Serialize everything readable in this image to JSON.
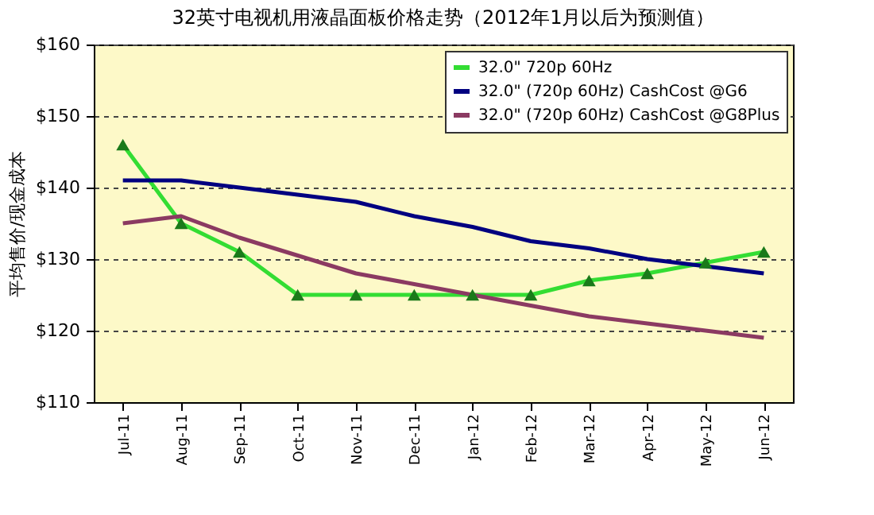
{
  "chart_data": {
    "type": "line",
    "title": "32英寸电视机用液晶面板价格走势（2012年1月以后为预测值）",
    "ylabel": "平均售价/现金成本",
    "categories": [
      "Jul-11",
      "Aug-11",
      "Sep-11",
      "Oct-11",
      "Nov-11",
      "Dec-11",
      "Jan-12",
      "Feb-12",
      "Mar-12",
      "Apr-12",
      "May-12",
      "Jun-12"
    ],
    "series": [
      {
        "name": "32.0\" 720p 60Hz",
        "color": "#33dd33",
        "marker": "triangle",
        "values": [
          146,
          135,
          131,
          125,
          125,
          125,
          125,
          125,
          127,
          128,
          129.5,
          131
        ]
      },
      {
        "name": "32.0\" (720p 60Hz) CashCost @G6",
        "color": "#000080",
        "marker": "none",
        "values": [
          141,
          141,
          140,
          139,
          138,
          136,
          134.5,
          132.5,
          131.5,
          130,
          129,
          128
        ]
      },
      {
        "name": "32.0\" (720p 60Hz) CashCost @G8Plus",
        "color": "#8b3a62",
        "marker": "none",
        "values": [
          135,
          136,
          133,
          130.5,
          128,
          126.5,
          125,
          123.5,
          122,
          121,
          120,
          119
        ]
      }
    ],
    "ylim": [
      110,
      160
    ],
    "yticks": [
      {
        "value": 110,
        "label": "$110"
      },
      {
        "value": 120,
        "label": "$120"
      },
      {
        "value": 130,
        "label": "$130"
      },
      {
        "value": 140,
        "label": "$140"
      },
      {
        "value": 150,
        "label": "$150"
      },
      {
        "value": 160,
        "label": "$160"
      }
    ],
    "grid": "y",
    "legend": "top right",
    "line_style": "solid"
  }
}
